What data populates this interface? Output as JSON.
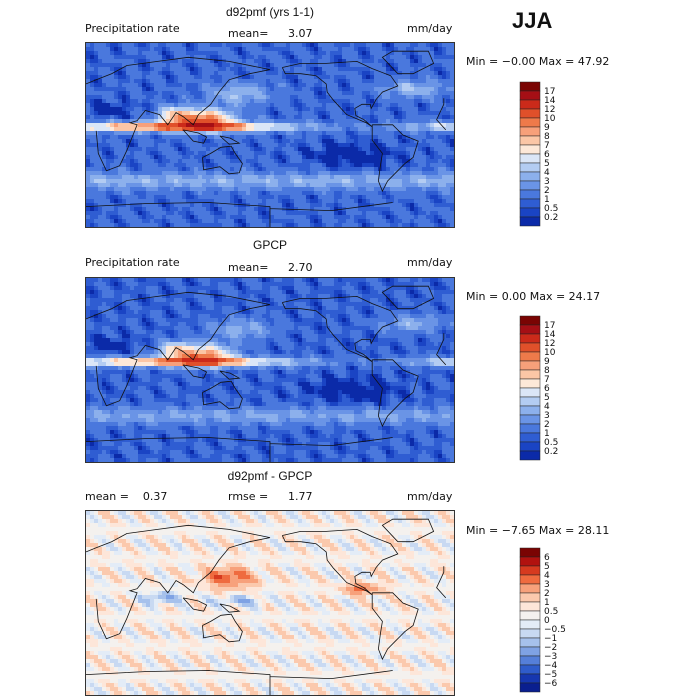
{
  "season": "JJA",
  "panels": [
    {
      "title": "d92pmf (yrs 1-1)",
      "left_label": "Precipitation rate",
      "mean_label": "mean=",
      "mean_value": "3.07",
      "units": "mm/day",
      "minmax": "Min =  −0.00 Max =  47.92",
      "palette": "precip",
      "colorbar_labels": [
        "17",
        "14",
        "12",
        "10",
        "9",
        "8",
        "7",
        "6",
        "5",
        "4",
        "3",
        "2",
        "1",
        "0.5",
        "0.2"
      ]
    },
    {
      "title": "GPCP",
      "left_label": "Precipitation rate",
      "mean_label": "mean=",
      "mean_value": "2.70",
      "units": "mm/day",
      "minmax": "Min =   0.00 Max =  24.17",
      "palette": "precip",
      "colorbar_labels": [
        "17",
        "14",
        "12",
        "10",
        "9",
        "8",
        "7",
        "6",
        "5",
        "4",
        "3",
        "2",
        "1",
        "0.5",
        "0.2"
      ]
    },
    {
      "title": "d92pmf - GPCP",
      "left_label": "mean =    0.37",
      "mean_label": "rmse =",
      "mean_value": "1.77",
      "units": "mm/day",
      "minmax": "Min =  −7.65 Max =  28.11",
      "palette": "diff",
      "colorbar_labels": [
        "6",
        "5",
        "4",
        "3",
        "2",
        "1",
        "0.5",
        "0",
        "−0.5",
        "−1",
        "−2",
        "−3",
        "−4",
        "−5",
        "−6"
      ]
    }
  ],
  "colors": {
    "precip": [
      "#7a0403",
      "#a50f15",
      "#cb2a1a",
      "#e0502a",
      "#ee7a4a",
      "#f7a07a",
      "#fbc6a6",
      "#fde8d8",
      "#dbe6f7",
      "#b3ccf2",
      "#8cb0ec",
      "#6a94e6",
      "#4a78dd",
      "#2f5dd2",
      "#1a44c4",
      "#0b2aa8"
    ],
    "diff": [
      "#7a0403",
      "#b1120f",
      "#d63a1f",
      "#ef6b3f",
      "#f7a17b",
      "#fbc9ad",
      "#fde6d9",
      "#f4f1ee",
      "#e3ecf7",
      "#c8d9f2",
      "#a6c1ec",
      "#7fa2e4",
      "#557fd9",
      "#2f5ccb",
      "#1637b0",
      "#0a1f8f"
    ]
  }
}
